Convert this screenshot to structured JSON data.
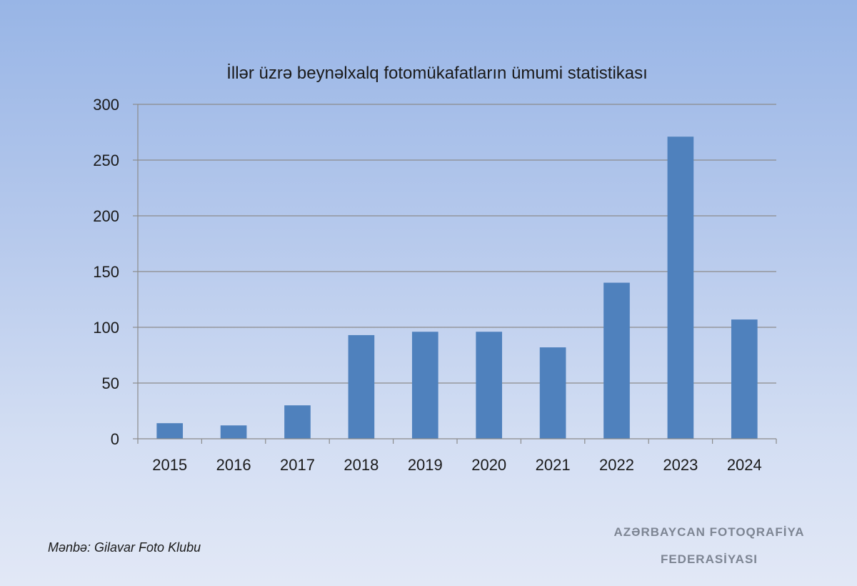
{
  "chart_data": {
    "type": "bar",
    "title": "İllər üzrə beynəlxalq fotomükafatların ümumi statistikası",
    "categories": [
      "2015",
      "2016",
      "2017",
      "2018",
      "2019",
      "2020",
      "2021",
      "2022",
      "2023",
      "2024"
    ],
    "values": [
      14,
      12,
      30,
      93,
      96,
      96,
      82,
      140,
      271,
      107
    ],
    "xlabel": "",
    "ylabel": "",
    "ylim": [
      0,
      300
    ],
    "yticks": [
      "0",
      "50",
      "100",
      "150",
      "200",
      "250",
      "300"
    ],
    "grid": true,
    "legend": "none",
    "bar_color": "#4f81bd",
    "grid_color": "#8c8c8c"
  },
  "source": "Mənbə: Gilavar Foto Klubu",
  "watermark": {
    "line1": "AZƏRBAYCAN FOTOQRAFİYA",
    "line2": "FEDERASİYASI"
  }
}
